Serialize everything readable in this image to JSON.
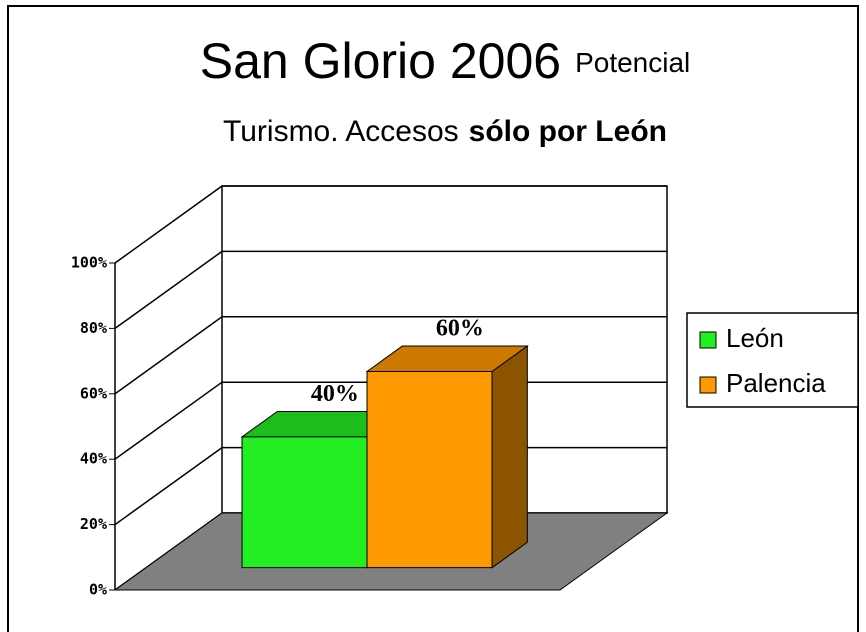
{
  "chart_data": {
    "type": "bar3d",
    "title": "San Glorio 2006",
    "title_note": "Potencial",
    "subtitle": [
      "Turismo. Accesos",
      "sólo por León"
    ],
    "categories": [
      null
    ],
    "series": [
      {
        "name": "León",
        "color": "#22ee22",
        "values": [
          40
        ],
        "value_labels": [
          "40%"
        ]
      },
      {
        "name": "Palencia",
        "color": "#ff9900",
        "values": [
          60
        ],
        "value_labels": [
          "60%"
        ]
      }
    ],
    "ylim": [
      0,
      100
    ],
    "yticks": [
      {
        "value": 0,
        "label": "0%"
      },
      {
        "value": 20,
        "label": "20%"
      },
      {
        "value": 40,
        "label": "40%"
      },
      {
        "value": 60,
        "label": "60%"
      },
      {
        "value": 80,
        "label": "80%"
      },
      {
        "value": 100,
        "label": "100%"
      }
    ],
    "grid": true,
    "legend": "right"
  }
}
